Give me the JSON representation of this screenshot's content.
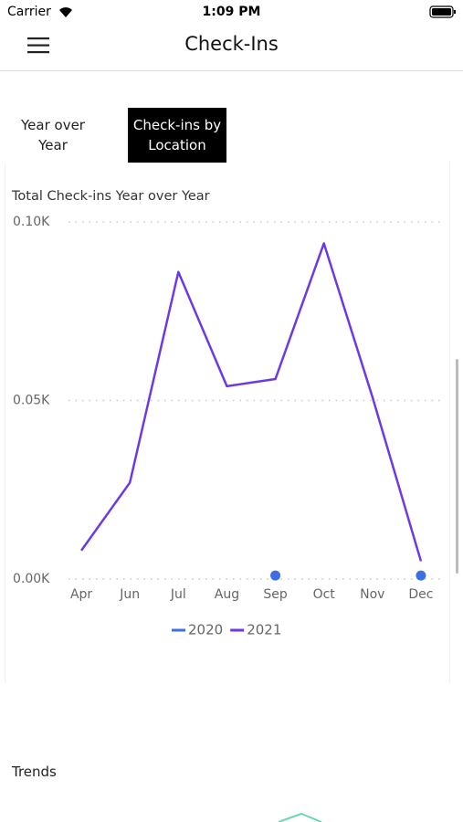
{
  "status_bar": {
    "carrier": "Carrier",
    "time": "1:09 PM"
  },
  "header": {
    "title": "Check-Ins"
  },
  "tabs": [
    "Year over Year",
    "Check-ins by Location"
  ],
  "chart_data": {
    "type": "line",
    "title": "Total Check-ins Year over Year",
    "categories": [
      "Apr",
      "Jun",
      "Jul",
      "Aug",
      "Sep",
      "Oct",
      "Nov",
      "Dec"
    ],
    "series": [
      {
        "name": "2020",
        "color": "#3d6fe3",
        "values": [
          null,
          null,
          null,
          null,
          1,
          null,
          null,
          1
        ]
      },
      {
        "name": "2021",
        "color": "#6b3ae6",
        "values": [
          8,
          27,
          86,
          54,
          56,
          94,
          51,
          5
        ]
      }
    ],
    "ylim": [
      0,
      100
    ],
    "yticks": [
      {
        "value": 0,
        "label": "0.00K"
      },
      {
        "value": 50,
        "label": "0.05K"
      },
      {
        "value": 100,
        "label": "0.10K"
      }
    ],
    "grid": true
  },
  "sections": {
    "trends": "Trends"
  }
}
